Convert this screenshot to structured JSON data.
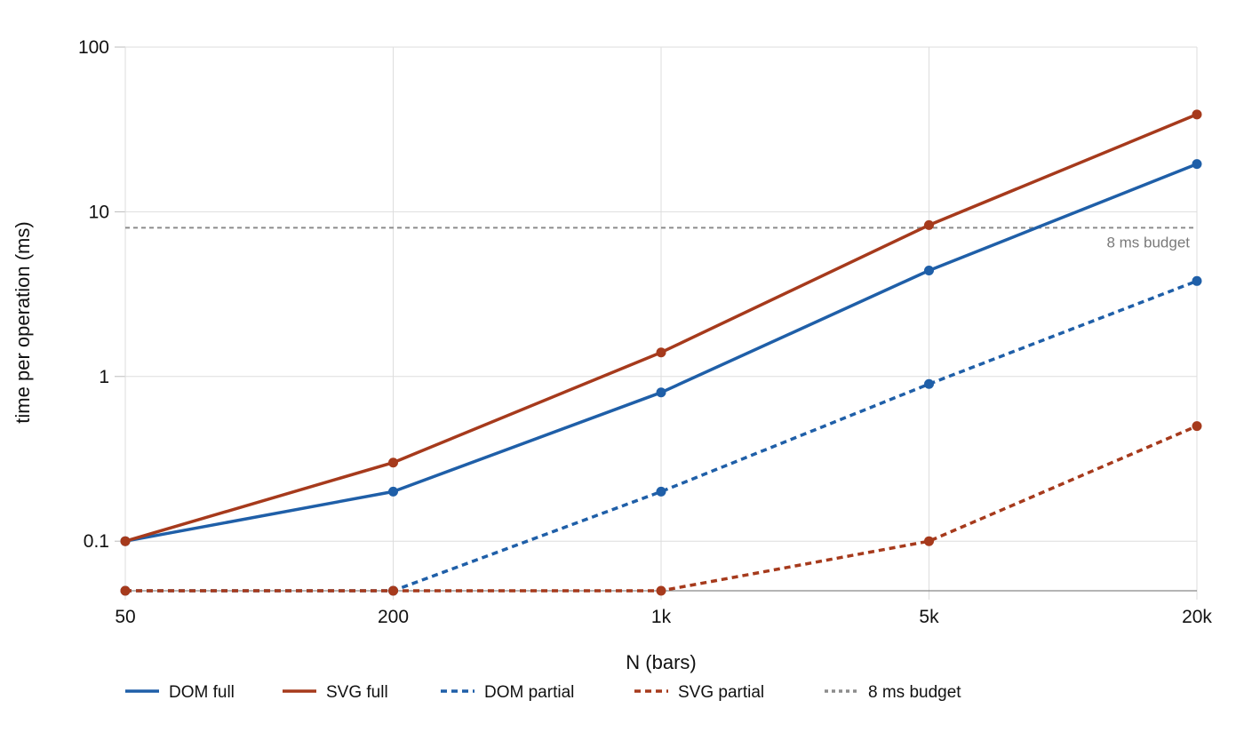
{
  "chart_data": {
    "type": "line",
    "xlabel": "N (bars)",
    "ylabel": "time per operation (ms)",
    "y_scale": "log",
    "ylim": [
      0.05,
      100
    ],
    "grid": true,
    "legend_position": "bottom",
    "categories": [
      "50",
      "200",
      "1k",
      "5k",
      "20k"
    ],
    "y_ticks": [
      "0.1",
      "1",
      "10",
      "100"
    ],
    "series": [
      {
        "name": "DOM full",
        "color": "#1f5fa8",
        "dashed": false,
        "values": [
          0.1,
          0.2,
          0.8,
          4.4,
          19.5
        ]
      },
      {
        "name": "SVG full",
        "color": "#a63a1c",
        "dashed": false,
        "values": [
          0.1,
          0.3,
          1.4,
          8.3,
          39
        ]
      },
      {
        "name": "DOM partial",
        "color": "#1f5fa8",
        "dashed": true,
        "values": [
          0.05,
          0.05,
          0.2,
          0.9,
          3.8
        ]
      },
      {
        "name": "SVG partial",
        "color": "#a63a1c",
        "dashed": true,
        "values": [
          0.05,
          0.05,
          0.05,
          0.1,
          0.5
        ]
      }
    ],
    "reference_line": {
      "name": "8 ms budget",
      "label": "8 ms budget",
      "value": 8,
      "color": "#8c8c8c"
    }
  }
}
